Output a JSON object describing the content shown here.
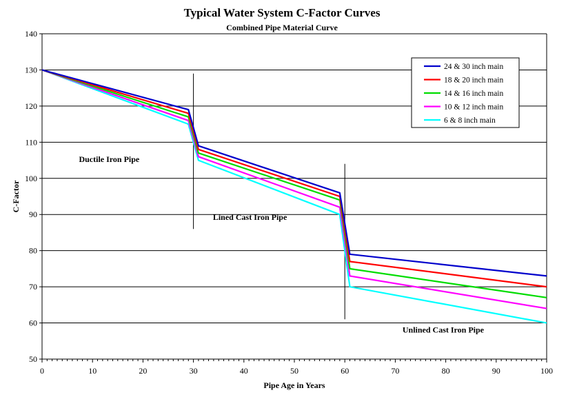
{
  "chart_data": {
    "type": "line",
    "title": "Typical Water System C-Factor Curves",
    "subtitle": "Combined Pipe Material Curve",
    "xlabel": "Pipe Age in Years",
    "ylabel": "C-Factor",
    "xlim": [
      0,
      100
    ],
    "ylim": [
      50,
      140
    ],
    "x_ticks": [
      0,
      10,
      20,
      30,
      40,
      50,
      60,
      70,
      80,
      90,
      100
    ],
    "y_ticks": [
      50,
      60,
      70,
      80,
      90,
      100,
      110,
      120,
      130,
      140
    ],
    "grid": "horizontal",
    "legend_position": "top-right",
    "series": [
      {
        "name": "24 & 30 inch main",
        "color": "#0000cc",
        "x": [
          0,
          29,
          31,
          59,
          61,
          100
        ],
        "y": [
          130,
          119,
          109,
          96,
          79,
          73
        ]
      },
      {
        "name": "18 & 20 inch main",
        "color": "#ff0000",
        "x": [
          0,
          29,
          31,
          59,
          61,
          100
        ],
        "y": [
          130,
          118,
          108,
          95,
          77,
          70
        ]
      },
      {
        "name": "14 & 16 inch main",
        "color": "#00dd00",
        "x": [
          0,
          29,
          31,
          59,
          61,
          100
        ],
        "y": [
          130,
          117,
          107,
          94,
          75,
          67
        ]
      },
      {
        "name": "10 & 12 inch main",
        "color": "#ff00ff",
        "x": [
          0,
          29,
          31,
          59,
          61,
          100
        ],
        "y": [
          130,
          116,
          106,
          92,
          73,
          64
        ]
      },
      {
        "name": "6 & 8 inch main",
        "color": "#00ffff",
        "x": [
          0,
          29,
          31,
          59,
          61,
          100
        ],
        "y": [
          130,
          115,
          105,
          90,
          70,
          60
        ]
      }
    ],
    "dividers": [
      {
        "x": 30,
        "y_range": [
          86,
          129
        ]
      },
      {
        "x": 60,
        "y_range": [
          61,
          104
        ]
      }
    ],
    "annotations": [
      {
        "text": "Ductile Iron Pipe",
        "x": 13.3,
        "y": 104.5
      },
      {
        "text": "Lined Cast Iron Pipe",
        "x": 41.2,
        "y": 88.5
      },
      {
        "text": "Unlined Cast Iron Pipe",
        "x": 79.5,
        "y": 57.3
      }
    ]
  }
}
